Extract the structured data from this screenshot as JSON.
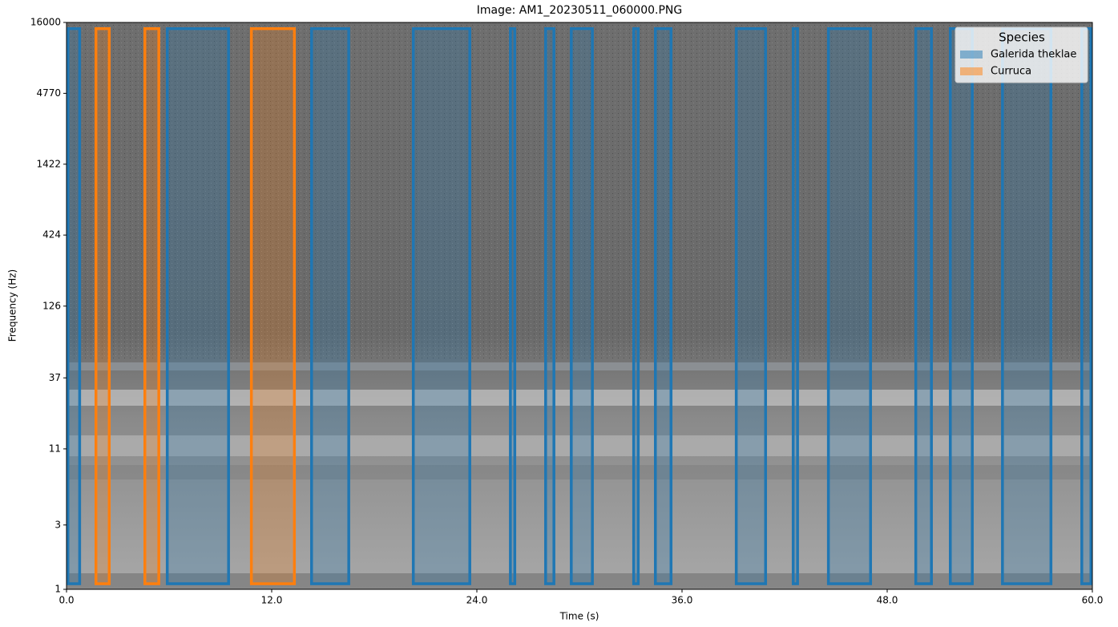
{
  "chart_data": {
    "type": "spectrogram-boxes",
    "title": "Image: AM1_20230511_060000.PNG",
    "x_label": "Time (s)",
    "y_label": "Frequency (Hz)",
    "xlim": [
      0,
      60
    ],
    "ylim": [
      1,
      16000
    ],
    "y_scale": "log",
    "xticks": [
      {
        "value": 0,
        "label": "0.0"
      },
      {
        "value": 12,
        "label": "12.0"
      },
      {
        "value": 24,
        "label": "24.0"
      },
      {
        "value": 36,
        "label": "36.0"
      },
      {
        "value": 48,
        "label": "48.0"
      },
      {
        "value": 60,
        "label": "60.0"
      }
    ],
    "yticks": [
      1,
      3,
      11,
      37,
      126,
      424,
      1422,
      4770,
      16000
    ],
    "legend_title": "Species",
    "legend_position": "upper right",
    "series": [
      {
        "name": "Galerida theklae",
        "color": "#1f77b4",
        "x_start": [
          0.0,
          5.81,
          14.25,
          20.2,
          25.88,
          27.94,
          29.44,
          33.09,
          34.36,
          39.09,
          42.42,
          44.48,
          49.59,
          51.61,
          54.66,
          59.3
        ],
        "x_end": [
          0.85,
          9.56,
          16.59,
          23.67,
          26.3,
          28.59,
          30.84,
          33.52,
          35.44,
          40.97,
          42.84,
          47.11,
          50.67,
          53.06,
          57.66,
          60.0
        ],
        "freq_low": [
          1.1,
          1.1,
          1.1,
          1.1,
          1.1,
          1.1,
          1.1,
          1.1,
          1.1,
          1.1,
          1.1,
          1.1,
          1.1,
          1.1,
          1.1,
          1.1
        ],
        "freq_high": [
          14400,
          14400,
          14400,
          14400,
          14400,
          14400,
          14400,
          14400,
          14400,
          14400,
          14400,
          14400,
          14400,
          14400,
          14400,
          14400
        ]
      },
      {
        "name": "Curruca",
        "color": "#ff7f0e",
        "x_start": [
          1.64,
          4.5,
          10.73
        ],
        "x_end": [
          2.58,
          5.48,
          13.41
        ],
        "freq_low": [
          1.1,
          1.1,
          1.1
        ],
        "freq_high": [
          14400,
          14400,
          14400
        ]
      }
    ]
  }
}
